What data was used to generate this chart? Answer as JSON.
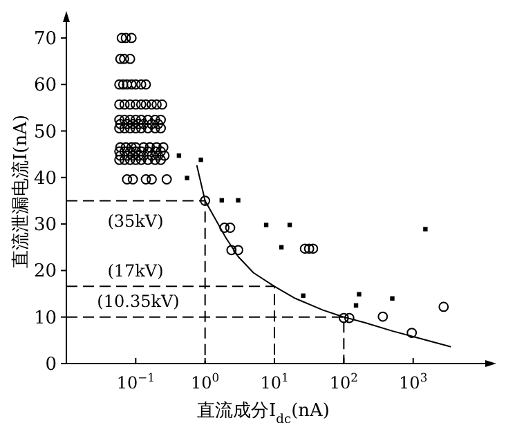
{
  "chart_data": {
    "type": "scatter",
    "xlabel": "直流成分I$_{dc}$(nA)",
    "ylabel": "直流泄漏电流I(nA)",
    "log": "x",
    "grid": false,
    "xlim": [
      0.01,
      12000
    ],
    "ylim": [
      0,
      74
    ],
    "xticks": [
      {
        "value": 0.1,
        "label": "10$^{−1}$"
      },
      {
        "value": 1,
        "label": "10$^{0}$"
      },
      {
        "value": 10,
        "label": "10$^{1}$"
      },
      {
        "value": 100,
        "label": "10$^{2}$"
      },
      {
        "value": 1000,
        "label": "10$^{3}$"
      }
    ],
    "yticks": [
      0,
      10,
      20,
      30,
      40,
      50,
      60,
      70
    ],
    "annotations": [
      "(35kV)",
      "(17kV)",
      "(10.35kV)"
    ],
    "series": [
      {
        "marker": "circle",
        "color": "#000000",
        "x": [
          0.063,
          0.072,
          0.087,
          0.06,
          0.068,
          0.083,
          0.058,
          0.066,
          0.075,
          0.087,
          0.1,
          0.12,
          0.14,
          0.058,
          0.069,
          0.083,
          0.1,
          0.12,
          0.14,
          0.17,
          0.2,
          0.24,
          0.058,
          0.069,
          0.083,
          0.1,
          0.12,
          0.15,
          0.19,
          0.23,
          0.06,
          0.075,
          0.091,
          0.11,
          0.13,
          0.17,
          0.21,
          0.058,
          0.069,
          0.083,
          0.1,
          0.12,
          0.15,
          0.19,
          0.23,
          0.06,
          0.072,
          0.087,
          0.1,
          0.13,
          0.16,
          0.2,
          0.25,
          0.058,
          0.069,
          0.083,
          0.1,
          0.12,
          0.15,
          0.19,
          0.23,
          0.06,
          0.075,
          0.091,
          0.11,
          0.13,
          0.17,
          0.21,
          0.26,
          0.058,
          0.069,
          0.083,
          0.1,
          0.12,
          0.15,
          0.19,
          0.23,
          0.075,
          0.091,
          0.14,
          0.17,
          0.28,
          1,
          1.9,
          2.3,
          2.4,
          3,
          27.5,
          31.6,
          36,
          100,
          120,
          365,
          955,
          2750
        ],
        "values": [
          70,
          70,
          70,
          65.5,
          65.5,
          65.5,
          60,
          60,
          60,
          60,
          60,
          60,
          60,
          55.7,
          55.7,
          55.7,
          55.7,
          55.7,
          55.7,
          55.7,
          55.7,
          55.7,
          52.4,
          52.4,
          52.4,
          52.4,
          52.4,
          52.4,
          52.4,
          52.4,
          51.5,
          51.5,
          51.5,
          51.5,
          51.5,
          51.5,
          51.5,
          50.6,
          50.6,
          50.6,
          50.6,
          50.6,
          50.6,
          50.6,
          50.6,
          46.5,
          46.5,
          46.5,
          46.5,
          46.5,
          46.5,
          46.5,
          46.5,
          45.6,
          45.6,
          45.6,
          45.6,
          45.6,
          45.6,
          45.6,
          45.6,
          44.7,
          44.7,
          44.7,
          44.7,
          44.7,
          44.7,
          44.7,
          44.7,
          43.8,
          43.8,
          43.8,
          43.8,
          43.8,
          43.8,
          43.8,
          43.8,
          39.6,
          39.6,
          39.6,
          39.6,
          39.6,
          35,
          29.2,
          29.2,
          24.4,
          24.4,
          24.7,
          24.7,
          24.7,
          9.8,
          9.8,
          10.1,
          6.6,
          12.2
        ]
      },
      {
        "marker": "square",
        "color": "#000000",
        "x": [
          0.42,
          0.87,
          0.55,
          1.74,
          3.0,
          7.6,
          16.6,
          12.6,
          26,
          150,
          166,
          500,
          1500
        ],
        "values": [
          44.7,
          43.8,
          39.9,
          35.1,
          35.1,
          29.8,
          29.8,
          25,
          14.6,
          12.5,
          14.9,
          14,
          28.9
        ]
      },
      {
        "type": "line",
        "line_style": "solid",
        "color": "#000000",
        "x": [
          0.76,
          1,
          2,
          3,
          5,
          10,
          20,
          50,
          100,
          200,
          500,
          1000,
          3500
        ],
        "values": [
          42.6,
          35,
          27,
          23,
          19.5,
          16.6,
          14,
          11.5,
          10,
          8.8,
          7,
          5.8,
          3.6
        ]
      },
      {
        "type": "line",
        "line_style": "dashed",
        "color": "#000000",
        "x": [
          0.01,
          1,
          1
        ],
        "values": [
          35,
          35,
          0
        ]
      },
      {
        "type": "line",
        "line_style": "dashed",
        "color": "#000000",
        "x": [
          0.01,
          10,
          10
        ],
        "values": [
          16.6,
          16.6,
          0
        ]
      },
      {
        "type": "line",
        "line_style": "dashed",
        "color": "#000000",
        "x": [
          0.01,
          100,
          100
        ],
        "values": [
          10,
          10,
          0
        ]
      }
    ]
  }
}
